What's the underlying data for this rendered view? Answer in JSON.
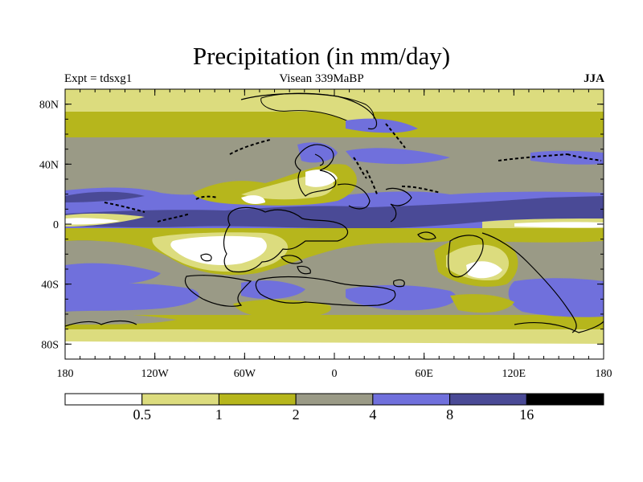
{
  "title": "Precipitation (in mm/day)",
  "experiment_label": "Expt = tdsxg1",
  "period_label": "Visean 339MaBP",
  "season_label": "JJA",
  "axes": {
    "lat_ticks": [
      {
        "value": 80,
        "label": "80N"
      },
      {
        "value": 40,
        "label": "40N"
      },
      {
        "value": 0,
        "label": "0"
      },
      {
        "value": -40,
        "label": "40S"
      },
      {
        "value": -80,
        "label": "80S"
      }
    ],
    "lon_ticks": [
      {
        "value": -180,
        "label": "180"
      },
      {
        "value": -120,
        "label": "120W"
      },
      {
        "value": -60,
        "label": "60W"
      },
      {
        "value": 0,
        "label": "0"
      },
      {
        "value": 60,
        "label": "60E"
      },
      {
        "value": 120,
        "label": "120E"
      },
      {
        "value": 180,
        "label": "180"
      }
    ]
  },
  "colorbar": {
    "colors": [
      "#ffffff",
      "#dcdc7e",
      "#b6b61c",
      "#9a9a86",
      "#7070dc",
      "#4a4a96",
      "#000000"
    ],
    "labels": [
      "0.5",
      "1",
      "2",
      "4",
      "8",
      "16"
    ]
  }
}
